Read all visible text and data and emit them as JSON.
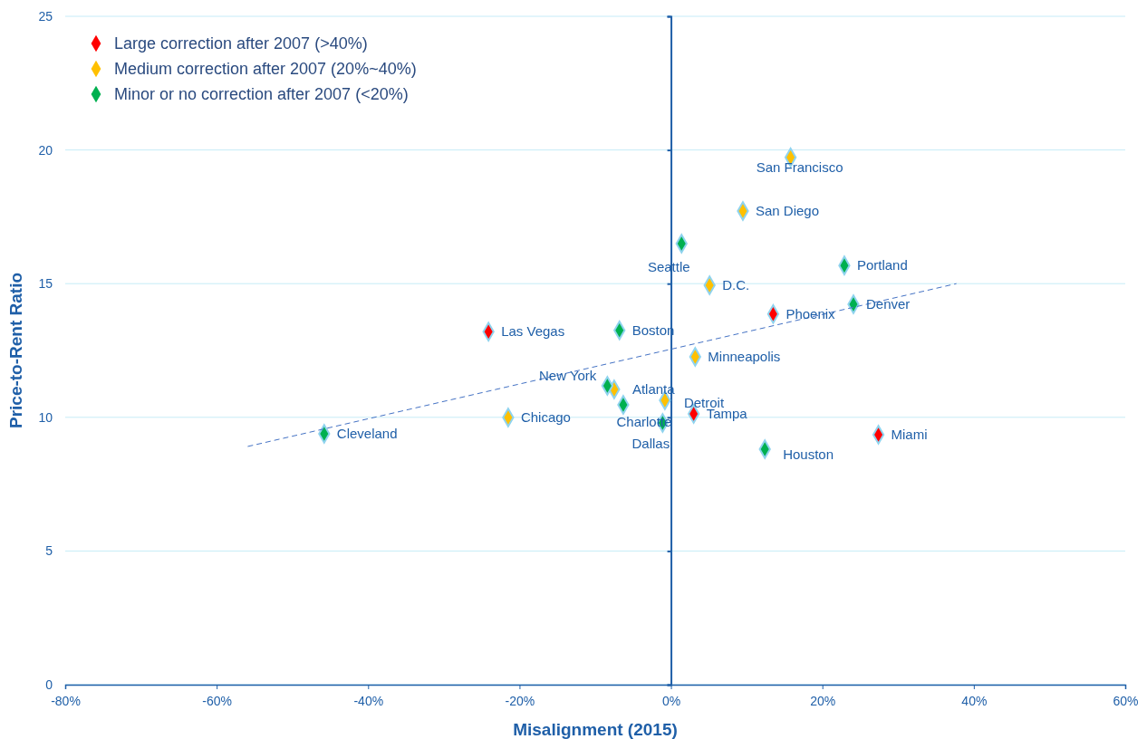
{
  "chart_data": {
    "type": "scatter",
    "xlabel": "Misalignment (2015)",
    "ylabel": "Price-to-Rent Ratio",
    "xlim": [
      -80,
      60
    ],
    "xticks": [
      {
        "value": -80,
        "label": "-80%"
      },
      {
        "value": -60,
        "label": "-60%"
      },
      {
        "value": -40,
        "label": "-40%"
      },
      {
        "value": -20,
        "label": "-20%"
      },
      {
        "value": 0,
        "label": "0%"
      },
      {
        "value": 20,
        "label": "20%"
      },
      {
        "value": 40,
        "label": "40%"
      },
      {
        "value": 60,
        "label": "60%"
      }
    ],
    "ylim": [
      0,
      25
    ],
    "yticks": [
      0,
      5,
      10,
      15,
      20,
      25
    ],
    "grid": "y",
    "legend": "top left",
    "marker": "diamond",
    "series": [
      {
        "name": "Large correction after  2007 (>40%)",
        "color": "#ff0000",
        "x": [
          13.5,
          -24.1,
          3.0,
          27.4
        ],
        "values": [
          13.86,
          13.2,
          10.13,
          9.35
        ]
      },
      {
        "name": "Medium correction after 2007 (20%~40%)",
        "color": "#ffc000",
        "x": [
          15.8,
          9.5,
          5.1,
          3.2,
          -7.5,
          -0.8,
          -21.5
        ],
        "values": [
          19.72,
          17.72,
          14.94,
          12.26,
          11.04,
          10.64,
          9.99
        ]
      },
      {
        "name": "Minor or no correction after 2007 (<20%)",
        "color": "#00b050",
        "x": [
          1.4,
          22.9,
          24.1,
          -6.8,
          -8.4,
          -6.3,
          -1.1,
          -45.8,
          12.4
        ],
        "values": [
          16.5,
          15.68,
          14.23,
          13.25,
          11.18,
          10.47,
          9.79,
          9.38,
          8.81
        ]
      },
      {
        "type": "line",
        "color": "#4472c4",
        "line_style": "dashed",
        "marker": "none",
        "x": [
          -55.9,
          37.7
        ],
        "values": [
          8.91,
          15.0
        ]
      }
    ],
    "annotations": [
      {
        "text": "San Francisco",
        "x": 15.8,
        "y": 19.72
      },
      {
        "text": "San Diego",
        "x": 9.5,
        "y": 17.72
      },
      {
        "text": "Seattle",
        "x": 1.4,
        "y": 16.5
      },
      {
        "text": "Portland",
        "x": 22.9,
        "y": 15.68
      },
      {
        "text": "D.C.",
        "x": 5.1,
        "y": 14.94
      },
      {
        "text": "Denver",
        "x": 24.1,
        "y": 14.23
      },
      {
        "text": "Phoenix",
        "x": 13.5,
        "y": 13.86
      },
      {
        "text": "Las Vegas",
        "x": -24.1,
        "y": 13.2
      },
      {
        "text": "Boston",
        "x": -6.8,
        "y": 13.25
      },
      {
        "text": "Minneapolis",
        "x": 3.2,
        "y": 12.26
      },
      {
        "text": "New York",
        "x": -8.4,
        "y": 11.18
      },
      {
        "text": "Atlanta",
        "x": -7.5,
        "y": 11.04
      },
      {
        "text": "Detroit",
        "x": -0.8,
        "y": 10.64
      },
      {
        "text": "Tampa",
        "x": 3.0,
        "y": 10.13
      },
      {
        "text": "Chicago",
        "x": -21.5,
        "y": 9.99
      },
      {
        "text": "Charlotte",
        "x": -6.3,
        "y": 10.47
      },
      {
        "text": "Dallas",
        "x": -1.1,
        "y": 9.79
      },
      {
        "text": "Cleveland",
        "x": -45.8,
        "y": 9.38
      },
      {
        "text": "Houston",
        "x": 12.4,
        "y": 8.81
      },
      {
        "text": "Miami",
        "x": 27.4,
        "y": 9.35
      }
    ]
  }
}
